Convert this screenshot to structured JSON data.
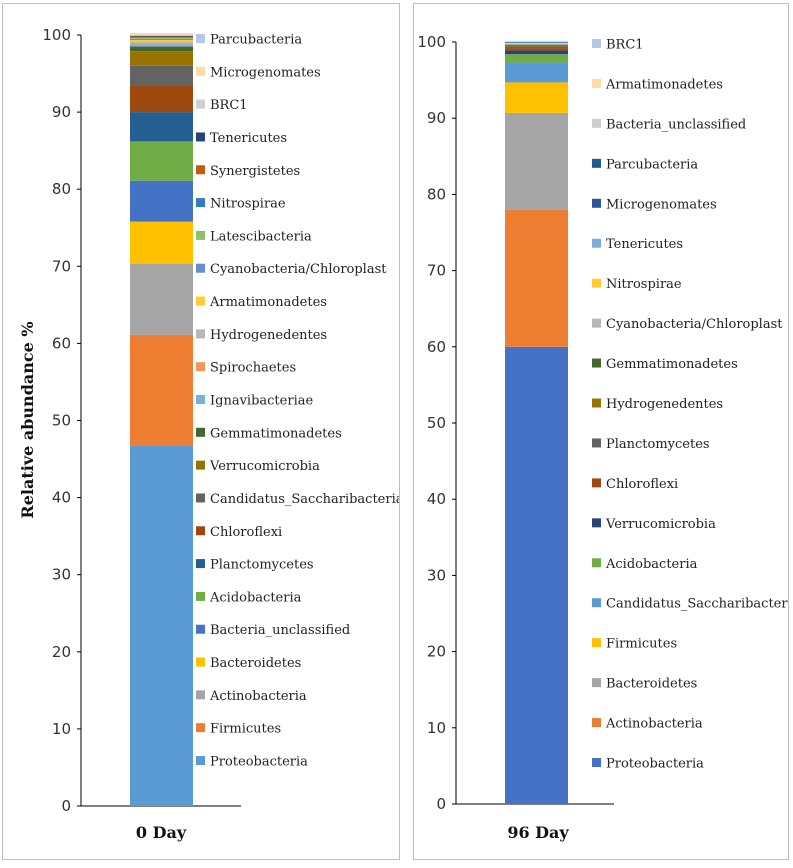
{
  "chart_data": [
    {
      "type": "bar",
      "stacked": true,
      "categories": [
        "0 Day"
      ],
      "ylabel": "Relative abundance %",
      "xlabel": "",
      "ylim": [
        0,
        100
      ],
      "yticks": [
        0,
        10,
        20,
        30,
        40,
        50,
        60,
        70,
        80,
        90,
        100
      ],
      "grid": false,
      "legend_placement": "right",
      "series": [
        {
          "name": "Proteobacteria",
          "values": [
            46.8
          ],
          "color": "#5b9bd5"
        },
        {
          "name": "Firmicutes",
          "values": [
            14.3
          ],
          "color": "#ed7d31"
        },
        {
          "name": "Actinobacteria",
          "values": [
            9.2
          ],
          "color": "#a5a5a5"
        },
        {
          "name": "Bacteroidetes",
          "values": [
            5.5
          ],
          "color": "#ffc000"
        },
        {
          "name": "Bacteria_unclassified",
          "values": [
            5.3
          ],
          "color": "#4472c4"
        },
        {
          "name": "Acidobacteria",
          "values": [
            5.1
          ],
          "color": "#70ad47"
        },
        {
          "name": "Planctomycetes",
          "values": [
            3.8
          ],
          "color": "#255e91"
        },
        {
          "name": "Chloroflexi",
          "values": [
            3.5
          ],
          "color": "#9e480e"
        },
        {
          "name": "Candidatus_Saccharibacteria",
          "values": [
            2.5
          ],
          "color": "#636363"
        },
        {
          "name": "Verrucomicrobia",
          "values": [
            1.9
          ],
          "color": "#997300"
        },
        {
          "name": "Gemmatimonadetes",
          "values": [
            0.6
          ],
          "color": "#43682b"
        },
        {
          "name": "Ignavibacteriae",
          "values": [
            0.3
          ],
          "color": "#7cafdd"
        },
        {
          "name": "Spirochaetes",
          "values": [
            0.2
          ],
          "color": "#f1975a"
        },
        {
          "name": "Hydrogenedentes",
          "values": [
            0.2
          ],
          "color": "#b7b7b7"
        },
        {
          "name": "Armatimonadetes",
          "values": [
            0.15
          ],
          "color": "#ffcd33"
        },
        {
          "name": "Cyanobacteria/Chloroplast",
          "values": [
            0.15
          ],
          "color": "#698ed0"
        },
        {
          "name": "Latescibacteria",
          "values": [
            0.1
          ],
          "color": "#8cc168"
        },
        {
          "name": "Nitrospirae",
          "values": [
            0.1
          ],
          "color": "#327dc2"
        },
        {
          "name": "Synergistetes",
          "values": [
            0.1
          ],
          "color": "#c55a11"
        },
        {
          "name": "Tenericutes",
          "values": [
            0.1
          ],
          "color": "#264478"
        },
        {
          "name": "BRC1",
          "values": [
            0.1
          ],
          "color": "#d0cece"
        },
        {
          "name": "Microgenomates",
          "values": [
            0.1
          ],
          "color": "#ffd9a6"
        },
        {
          "name": "Parcubacteria",
          "values": [
            0.1
          ],
          "color": "#b4c7e7"
        }
      ]
    },
    {
      "type": "bar",
      "stacked": true,
      "categories": [
        "96 Day"
      ],
      "ylabel": "",
      "xlabel": "",
      "ylim": [
        0,
        100
      ],
      "yticks": [
        0,
        10,
        20,
        30,
        40,
        50,
        60,
        70,
        80,
        90,
        100
      ],
      "grid": false,
      "legend_placement": "right",
      "series": [
        {
          "name": "Proteobacteria",
          "values": [
            60.0
          ],
          "color": "#4472c4"
        },
        {
          "name": "Actinobacteria",
          "values": [
            18.0
          ],
          "color": "#ed7d31"
        },
        {
          "name": "Bacteroidetes",
          "values": [
            12.7
          ],
          "color": "#a5a5a5"
        },
        {
          "name": "Firmicutes",
          "values": [
            4.0
          ],
          "color": "#ffc000"
        },
        {
          "name": "Candidatus_Saccharibacteria",
          "values": [
            2.6
          ],
          "color": "#5b9bd5"
        },
        {
          "name": "Acidobacteria",
          "values": [
            1.1
          ],
          "color": "#70ad47"
        },
        {
          "name": "Verrucomicrobia",
          "values": [
            0.5
          ],
          "color": "#264478"
        },
        {
          "name": "Chloroflexi",
          "values": [
            0.3
          ],
          "color": "#9e480e"
        },
        {
          "name": "Planctomycetes",
          "values": [
            0.2
          ],
          "color": "#636363"
        },
        {
          "name": "Hydrogenedentes",
          "values": [
            0.15
          ],
          "color": "#997300"
        },
        {
          "name": "Gemmatimonadetes",
          "values": [
            0.1
          ],
          "color": "#43682b"
        },
        {
          "name": "Cyanobacteria/Chloroplast",
          "values": [
            0.1
          ],
          "color": "#b7b7b7"
        },
        {
          "name": "Nitrospirae",
          "values": [
            0.1
          ],
          "color": "#ffcd33"
        },
        {
          "name": "Tenericutes",
          "values": [
            0.05
          ],
          "color": "#7cafdd"
        },
        {
          "name": "Microgenomates",
          "values": [
            0.05
          ],
          "color": "#2e5597"
        },
        {
          "name": "Parcubacteria",
          "values": [
            0.05
          ],
          "color": "#1f5c8f"
        },
        {
          "name": "Bacteria_unclassified",
          "values": [
            0.05
          ],
          "color": "#d0cece"
        },
        {
          "name": "Armatimonadetes",
          "values": [
            0.05
          ],
          "color": "#ffd9a6"
        },
        {
          "name": "BRC1",
          "values": [
            0.05
          ],
          "color": "#b4c7e7"
        }
      ]
    }
  ]
}
